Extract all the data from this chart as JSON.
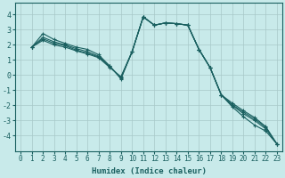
{
  "xlabel": "Humidex (Indice chaleur)",
  "background_color": "#c8eaea",
  "grid_color": "#a8c8c8",
  "line_color": "#1a6060",
  "xlim": [
    -0.5,
    23.5
  ],
  "ylim": [
    -5,
    4.8
  ],
  "yticks": [
    -4,
    -3,
    -2,
    -1,
    0,
    1,
    2,
    3,
    4
  ],
  "xticks": [
    0,
    1,
    2,
    3,
    4,
    5,
    6,
    7,
    8,
    9,
    10,
    11,
    12,
    13,
    14,
    15,
    16,
    17,
    18,
    19,
    20,
    21,
    22,
    23
  ],
  "lines": [
    [
      1.85,
      2.75,
      2.35,
      2.1,
      1.85,
      1.7,
      1.35,
      0.6,
      -0.25,
      1.55,
      3.85,
      3.3,
      3.45,
      3.4,
      3.3,
      1.7,
      0.5,
      -1.3,
      -2.1,
      -2.75,
      -3.3,
      -3.7,
      -4.55
    ],
    [
      1.85,
      2.5,
      2.2,
      2.0,
      1.75,
      1.55,
      1.25,
      0.6,
      -0.2,
      1.55,
      3.85,
      3.3,
      3.45,
      3.4,
      3.3,
      1.7,
      0.5,
      -1.3,
      -2.0,
      -2.55,
      -3.0,
      -3.55,
      -4.55
    ],
    [
      1.85,
      2.4,
      2.1,
      1.95,
      1.65,
      1.45,
      1.2,
      0.55,
      -0.15,
      1.55,
      3.85,
      3.3,
      3.45,
      3.4,
      3.3,
      1.7,
      0.5,
      -1.3,
      -1.95,
      -2.45,
      -2.9,
      -3.45,
      -4.55
    ],
    [
      1.85,
      2.3,
      2.0,
      1.85,
      1.6,
      1.4,
      1.15,
      0.5,
      -0.1,
      1.55,
      3.85,
      3.3,
      3.45,
      3.4,
      3.3,
      1.7,
      0.5,
      -1.3,
      -1.85,
      -2.35,
      -2.8,
      -3.4,
      -4.55
    ]
  ],
  "line_start_x": 1,
  "xlabel_fontsize": 6.5,
  "tick_fontsize": 5.5,
  "ytick_fontsize": 6.0
}
